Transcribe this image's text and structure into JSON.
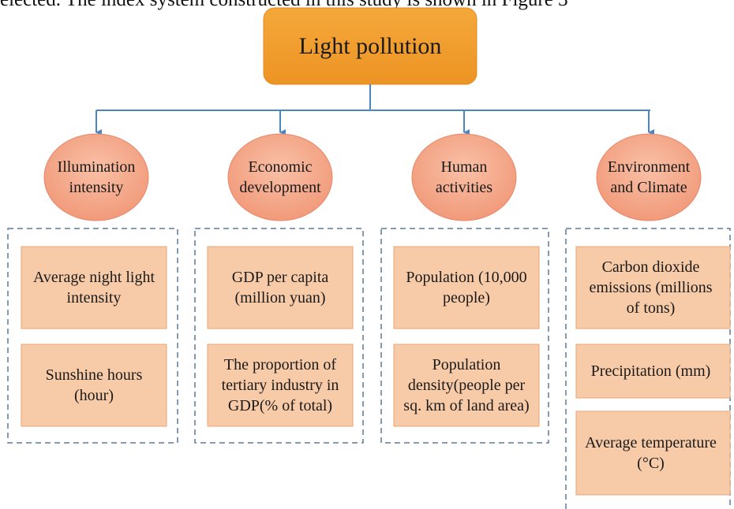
{
  "caption": "elected. The index system constructed in this study is shown in Figure 3",
  "root": "Light pollution",
  "categories": [
    {
      "label": "Illumination intensity",
      "items": [
        "Average night light intensity",
        "Sunshine hours (hour)"
      ]
    },
    {
      "label": "Economic development",
      "items": [
        "GDP per capita (million yuan)",
        "The proportion of tertiary industry in GDP(% of total)"
      ]
    },
    {
      "label": "Human activities",
      "items": [
        "Population (10,000 people)",
        "Population density(people per sq. km of land area)"
      ]
    },
    {
      "label": "Environment and Climate",
      "items": [
        "Carbon dioxide emissions (millions of tons)",
        "Precipitation (mm)",
        "Average temperature (°C)"
      ]
    }
  ]
}
